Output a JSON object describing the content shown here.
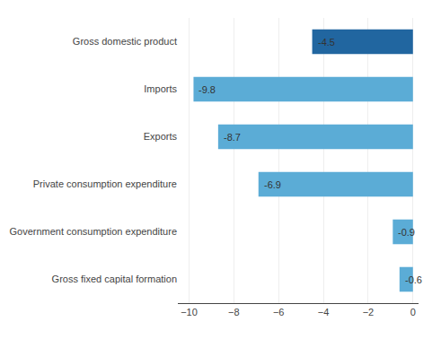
{
  "chart_data": {
    "type": "bar",
    "orientation": "horizontal",
    "categories": [
      "Gross fixed capital formation",
      "Government consumption expenditure",
      "Private consumption expenditure",
      "Exports",
      "Imports",
      "Gross domestic product"
    ],
    "values": [
      -0.6,
      -0.9,
      -6.9,
      -8.7,
      -9.8,
      -4.5
    ],
    "colors": [
      "#5bacd6",
      "#5bacd6",
      "#5bacd6",
      "#5bacd6",
      "#5bacd6",
      "#2166a0"
    ],
    "xlim": [
      -10.5,
      0.25
    ],
    "xticks": [
      -10,
      -8,
      -6,
      -4,
      -2,
      0
    ],
    "grid": true,
    "data_labels": true
  }
}
